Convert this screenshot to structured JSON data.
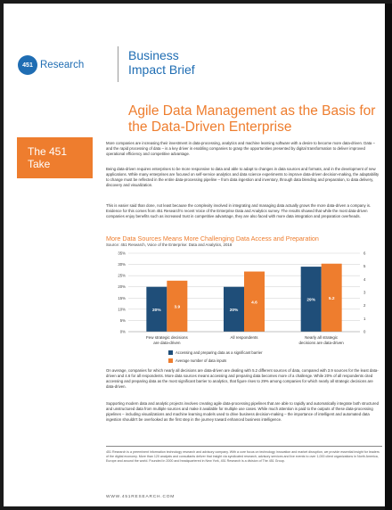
{
  "header": {
    "logo_mark": "451",
    "logo_text": "Research",
    "brief_line1": "Business",
    "brief_line2": "Impact Brief"
  },
  "headline": "Agile Data Management as the Basis for the Data-Driven Enterprise",
  "sidebar": {
    "take_line1": "The 451",
    "take_line2": "Take"
  },
  "body": {
    "para1": "More companies are increasing their investment in data-processing, analytics and machine learning software with a desire to become more data-driven. Data – and the rapid processing of data – is a key driver in enabling companies to grasp the opportunities presented by digital transformation to deliver improved operational efficiency and competitive advantage.",
    "para2": "Being data-driven requires enterprises to be more responsive to data and able to adapt to changes in data sources and formats, and in the development of new applications. While many enterprises are focused on self-service analytics and data science experiments to improve data-driven decision-making, the adaptability to change must be reflected in the entire data-processing pipeline – from data ingestion and inventory, through data blending and preparation, to data delivery, discovery and visualization.",
    "para3": "This is easier said than done, not least because the complexity involved in integrating and managing data actually grows the more data-driven a company is. Evidence for this comes from 451 Research's recent Voice of the Enterprise Data and Analytics survey. The results showed that while the most data-driven companies enjoy benefits such as increased trust in competitive advantage, they are also faced with more data integration and preparation overheads.",
    "para4": "On average, companies for which nearly all decisions are data-driven are dealing with 5.2 different sources of data, compared with 3.9 sources for the least data-driven and 4.6 for all respondents. More data sources means accessing and preparing data becomes more of a challenge. While 20% of all respondents cited accessing and preparing data as the most significant barrier to analytics, that figure rises to 29% among companies for which nearly all strategic decisions are data-driven.",
    "para5": "Supporting modern data and analytic projects involves creating agile data-processing pipelines that are able to rapidly and automatically integrate both structured and unstructured data from multiple sources and make it available for multiple use cases. While much attention is paid to the outputs of these data-processing pipelines – including visualizations and machine learning models used to drive business decision-making – the importance of intelligent and automated data ingestion shouldn't be overlooked as the first step in the journey toward enhanced business intelligence."
  },
  "footer": {
    "about": "451 Research is a preeminent information technology research and advisory company. With a core focus on technology innovation and market disruption, we provide essential insight for leaders of the digital economy. More than 120 analysts and consultants deliver that insight via syndicated research, advisory services and live events to over 1,000 client organizations in North America, Europe and around the world. Founded in 2000 and headquartered in New York, 451 Research is a division of The 451 Group.",
    "url": "WWW.451RESEARCH.COM"
  },
  "colors": {
    "bar_dark": "#1f4e79",
    "bar_orange": "#ee7d2e",
    "brand_blue": "#1f6db3"
  },
  "chart_data": {
    "type": "bar",
    "title": "More Data Sources Means More Challenging Data Access and Preparation",
    "source": "Source: 451 Research, Voice of the Enterprise: Data and Analytics, 2018",
    "categories": [
      "Few strategic decisions are data-driven",
      "All respondents",
      "Nearly all strategic decisions are data-driven"
    ],
    "series": [
      {
        "name": "Accessing and preparing data as a significant barrier",
        "values": [
          20,
          20,
          29
        ],
        "labels": [
          "20%",
          "20%",
          "29%"
        ],
        "axis": "left"
      },
      {
        "name": "Average number of data inputs",
        "values": [
          3.9,
          4.6,
          5.2
        ],
        "labels": [
          "3.9",
          "4.6",
          "5.2"
        ],
        "axis": "right"
      }
    ],
    "ylim_left": [
      0,
      35
    ],
    "ylim_right": [
      0,
      6
    ],
    "left_ticks": [
      "0%",
      "5%",
      "10%",
      "15%",
      "20%",
      "25%",
      "30%",
      "35%"
    ],
    "right_ticks": [
      "0",
      "1",
      "2",
      "3",
      "4",
      "5",
      "6"
    ],
    "grid": true,
    "legend_position": "bottom"
  }
}
